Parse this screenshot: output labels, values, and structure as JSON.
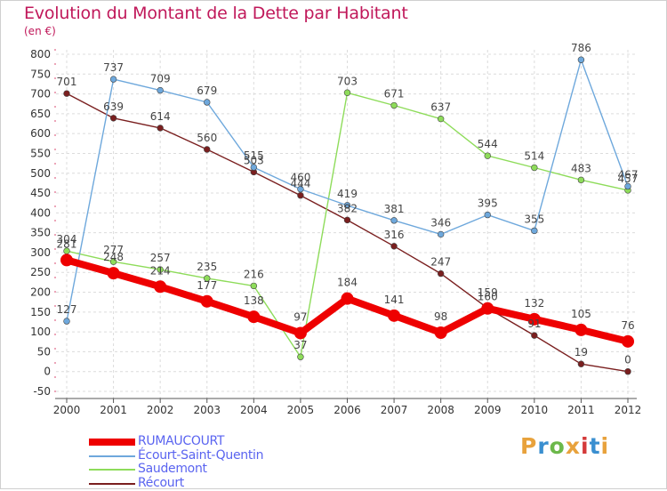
{
  "title": "Evolution du Montant de la Dette par Habitant",
  "subtitle": "(en €)",
  "logo": {
    "text": "Proxiti",
    "colors": [
      "#e8a23c",
      "#3a8fd0",
      "#6cb84a",
      "#e8a23c",
      "#d43a3a",
      "#3a8fd0",
      "#e8a23c"
    ]
  },
  "chart_data": {
    "type": "line",
    "x": [
      2000,
      2001,
      2002,
      2003,
      2004,
      2005,
      2006,
      2007,
      2008,
      2009,
      2010,
      2011,
      2012
    ],
    "ylim": [
      -50,
      800
    ],
    "yticks": [
      -50,
      0,
      50,
      100,
      150,
      200,
      250,
      300,
      350,
      400,
      450,
      500,
      550,
      600,
      650,
      700,
      750,
      800
    ],
    "grid": true,
    "legend_position": "bottom-left",
    "series": [
      {
        "name": "Récourt",
        "color": "#7a1f1f",
        "values": [
          701,
          639,
          614,
          560,
          503,
          444,
          382,
          316,
          247,
          160,
          91,
          19,
          0
        ],
        "labels": [
          "701",
          "639",
          "614",
          "560",
          "503",
          "444",
          "382",
          "316",
          "247",
          "160",
          "91",
          "19",
          "0"
        ]
      },
      {
        "name": "Saudemont",
        "color": "#8edc5a",
        "values": [
          304,
          277,
          257,
          235,
          216,
          37,
          703,
          671,
          637,
          544,
          514,
          483,
          457
        ],
        "labels": [
          "304",
          "277",
          "257",
          "235",
          "216",
          "37",
          "703",
          "671",
          "637",
          "544",
          "514",
          "483",
          "457"
        ]
      },
      {
        "name": "Écourt-Saint-Quentin",
        "color": "#6ea8dc",
        "values": [
          127,
          737,
          709,
          679,
          515,
          460,
          419,
          381,
          346,
          395,
          355,
          786,
          467
        ],
        "labels": [
          "127",
          "737",
          "709",
          "679",
          "515",
          "460",
          "419",
          "381",
          "346",
          "395",
          "355",
          "786",
          "467"
        ]
      },
      {
        "name": "RUMAUCOURT",
        "color": "#ee0000",
        "values": [
          281,
          248,
          214,
          177,
          138,
          97,
          184,
          141,
          98,
          159,
          132,
          105,
          76
        ],
        "labels": [
          "281",
          "248",
          "214",
          "177",
          "138",
          "97",
          "184",
          "141",
          "98",
          "159",
          "132",
          "105",
          "76"
        ]
      }
    ],
    "legend": [
      "RUMAUCOURT",
      "Écourt-Saint-Quentin",
      "Saudemont",
      "Récourt"
    ]
  }
}
